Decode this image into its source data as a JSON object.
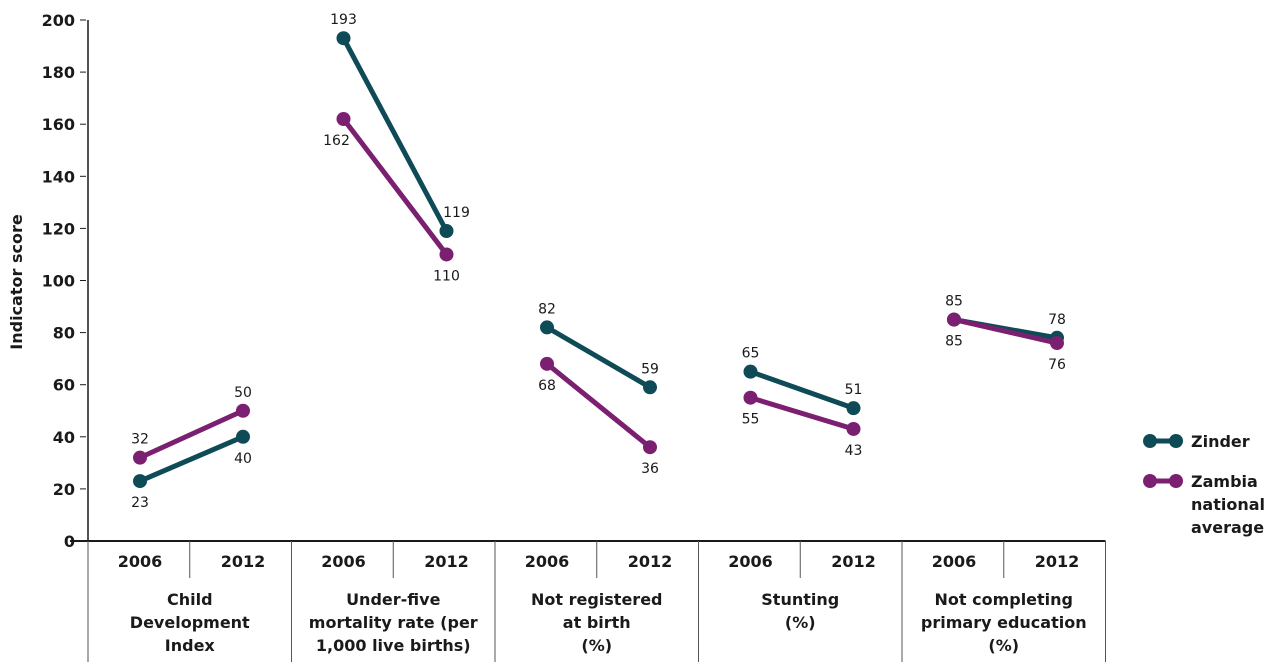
{
  "chart_data": {
    "type": "line",
    "ylabel": "Indicator score",
    "ylim": [
      0,
      200
    ],
    "yticks": [
      0,
      20,
      40,
      60,
      80,
      100,
      120,
      140,
      160,
      180,
      200
    ],
    "years": [
      "2006",
      "2012"
    ],
    "groups": [
      {
        "label_lines": [
          "Child",
          "Development",
          "Index"
        ]
      },
      {
        "label_lines": [
          "Under-five",
          "mortality rate (per",
          "1,000 live births)"
        ]
      },
      {
        "label_lines": [
          "Not registered",
          "at birth",
          "(%)"
        ]
      },
      {
        "label_lines": [
          "Stunting",
          "(%)"
        ]
      },
      {
        "label_lines": [
          "Not completing",
          "primary education",
          "(%)"
        ]
      }
    ],
    "series": [
      {
        "name": "Zinder",
        "legend_lines": [
          "Zinder"
        ],
        "color": "#0f4a57",
        "values": [
          [
            23,
            40
          ],
          [
            193,
            119
          ],
          [
            82,
            59
          ],
          [
            65,
            51
          ],
          [
            85,
            78
          ]
        ]
      },
      {
        "name": "Zambia national average",
        "legend_lines": [
          "Zambia",
          "national",
          "average"
        ],
        "color": "#7b2070",
        "values": [
          [
            32,
            50
          ],
          [
            162,
            110
          ],
          [
            68,
            36
          ],
          [
            55,
            43
          ],
          [
            85,
            76
          ]
        ]
      }
    ],
    "legend_position": "right",
    "grid": false
  }
}
